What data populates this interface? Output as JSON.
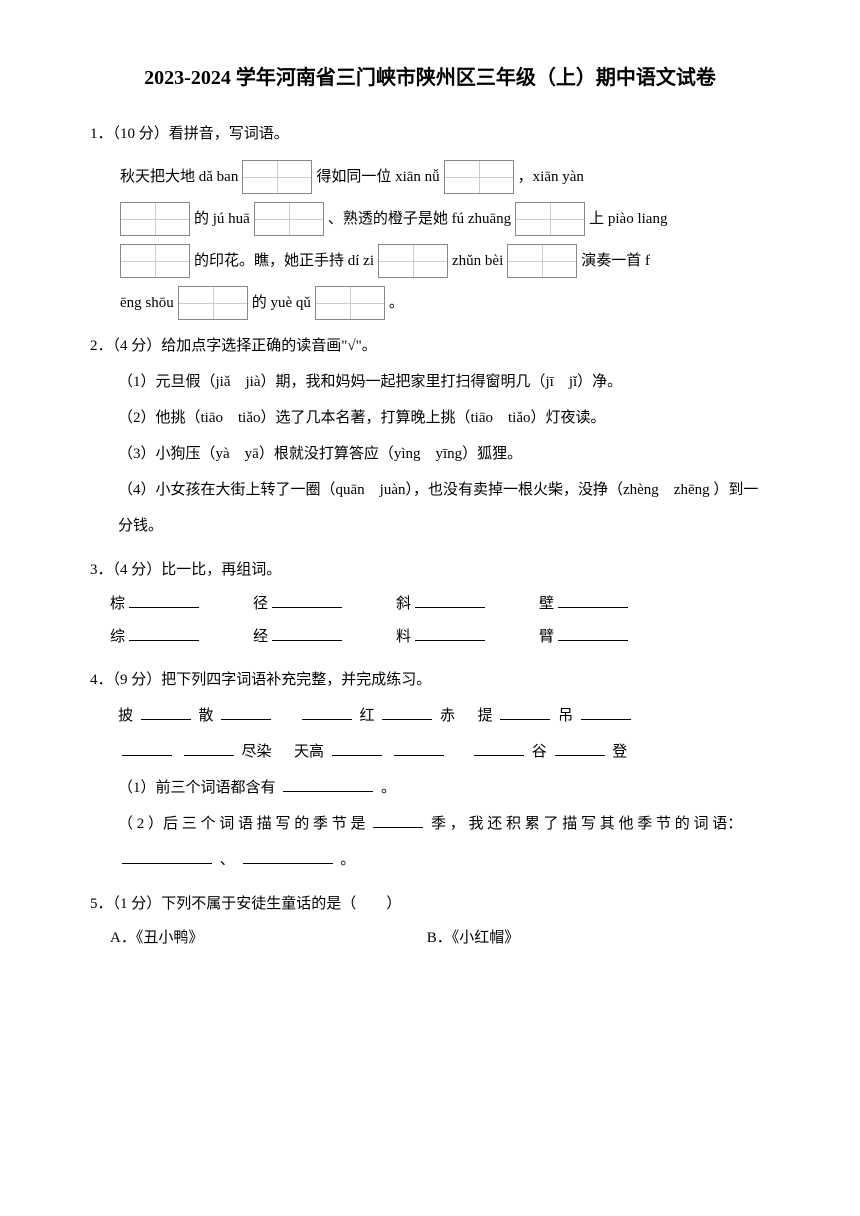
{
  "title": "2023-2024 学年河南省三门峡市陕州区三年级（上）期中语文试卷",
  "q1": {
    "header": "1．（10 分）看拼音，写词语。",
    "line1_pre": "秋天把大地 dǎ ban",
    "line1_mid": "得如同一位 xiān nǚ",
    "line1_end": "，xiān yàn",
    "line2_pre": "的 jú huā",
    "line2_mid": "、熟透的橙子是她 fú zhuāng",
    "line2_end": "上 piào liang",
    "line3_pre": "的印花。瞧，她正手持 dí zi",
    "line3_mid": "zhǔn bèi",
    "line3_end": "演奏一首 f",
    "line4_pre": "ēng shōu",
    "line4_mid": "的 yuè qǔ",
    "line4_end": "。"
  },
  "q2": {
    "header": "2．（4 分）给加点字选择正确的读音画\"√\"。",
    "item1": "（1）元旦假（jiǎ　jià）期，我和妈妈一起把家里打扫得窗明几（jī　jǐ）净。",
    "item2": "（2）他挑（tiāo　tiǎo）选了几本名著，打算晚上挑（tiāo　tiǎo）灯夜读。",
    "item3": "（3）小狗压（yà　yā）根就没打算答应（yìng　yīng）狐狸。",
    "item4": "（4）小女孩在大街上转了一圈（quān　juàn），也没有卖掉一根火柴，没挣（zhèng　zhēng ）到一分钱。"
  },
  "q3": {
    "header": "3．（4 分）比一比，再组词。",
    "row1": [
      "棕",
      "径",
      "斜",
      "壁"
    ],
    "row2": [
      "综",
      "经",
      "料",
      "臂"
    ]
  },
  "q4": {
    "header": "4．（9 分）把下列四字词语补充完整，并完成练习。",
    "row1_a": "披",
    "row1_b": "散",
    "row1_c": "红",
    "row1_d": "赤",
    "row1_e": "提",
    "row1_f": "吊",
    "row2_a": "尽染",
    "row2_b": "天高",
    "row2_c": "谷",
    "row2_d": "登",
    "sub1": "（1）前三个词语都含有",
    "sub1_end": "。",
    "sub2_pre": "（ 2 ）后 三 个 词 语 描 写 的 季 节 是 ",
    "sub2_mid": "季 ， 我 还 积 累 了 描 写 其 他 季 节 的 词 语：",
    "sub2_sep": "、",
    "sub2_end": "。"
  },
  "q5": {
    "header": "5．（1 分）下列不属于安徒生童话的是（　　）",
    "optA": "A．《丑小鸭》",
    "optB": "B．《小红帽》"
  }
}
